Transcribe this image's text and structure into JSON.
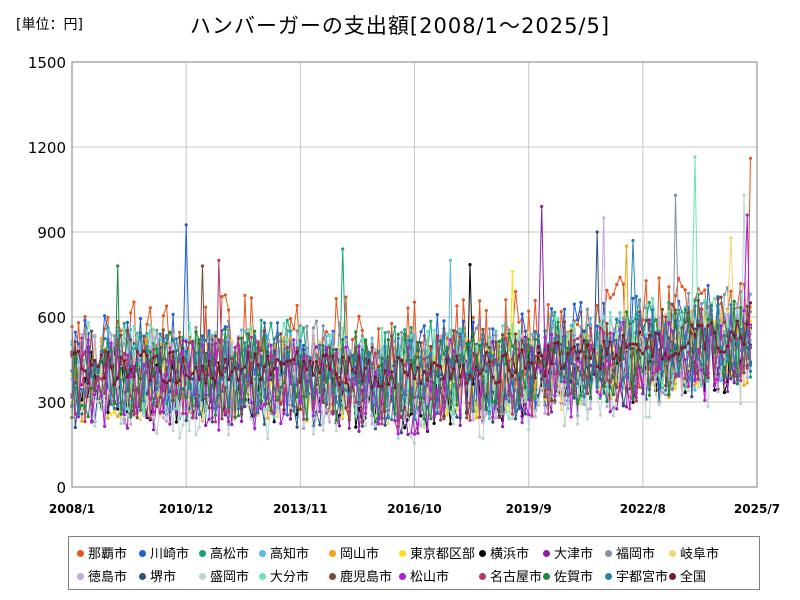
{
  "header": {
    "unit": "[単位：円]",
    "title": "ハンバーガーの支出額[2008/1～2025/5]"
  },
  "chart_data": {
    "type": "line",
    "title": "ハンバーガーの支出額[2008/1～2025/5]",
    "unit_label": "[単位：円]",
    "xlabel": "",
    "ylabel": "",
    "ylim": [
      0,
      1500
    ],
    "yticks": [
      0,
      300,
      600,
      900,
      1200,
      1500
    ],
    "xlim": [
      "2008/1",
      "2025/7"
    ],
    "xticks": [
      "2008/1",
      "2010/12",
      "2013/11",
      "2016/10",
      "2019/9",
      "2022/8",
      "2025/7"
    ],
    "grid": true,
    "legend_position": "bottom",
    "series": [
      {
        "name": "那覇市",
        "color": "#e8541e",
        "base": 480,
        "amp": 200,
        "peak_date": "2025/5",
        "peak_value": 1160
      },
      {
        "name": "川崎市",
        "color": "#1f5fd9",
        "base": 430,
        "amp": 180,
        "peak_date": "2010/12",
        "peak_value": 925
      },
      {
        "name": "高松市",
        "color": "#16a37a",
        "base": 420,
        "amp": 170,
        "peak_date": "2014/12",
        "peak_value": 840
      },
      {
        "name": "高知市",
        "color": "#5bb8e8",
        "base": 400,
        "amp": 160,
        "peak_date": "2017/9",
        "peak_value": 800
      },
      {
        "name": "岡山市",
        "color": "#f2a318",
        "base": 380,
        "amp": 150,
        "peak_date": "2022/3",
        "peak_value": 850
      },
      {
        "name": "東京都区部",
        "color": "#f5e11a",
        "base": 370,
        "amp": 120,
        "peak_date": "2019/4",
        "peak_value": 760
      },
      {
        "name": "横浜市",
        "color": "#000000",
        "base": 350,
        "amp": 130,
        "peak_date": "2018/3",
        "peak_value": 785
      },
      {
        "name": "大津市",
        "color": "#8b1ea6",
        "base": 360,
        "amp": 160,
        "peak_date": "2020/1",
        "peak_value": 990
      },
      {
        "name": "福岡市",
        "color": "#8591a0",
        "base": 420,
        "amp": 170,
        "peak_date": "2023/6",
        "peak_value": 1030
      },
      {
        "name": "岐阜市",
        "color": "#f0d477",
        "base": 380,
        "amp": 150,
        "peak_date": "2024/11",
        "peak_value": 880
      },
      {
        "name": "徳島市",
        "color": "#c6a6dc",
        "base": 380,
        "amp": 160,
        "peak_date": "2021/8",
        "peak_value": 950
      },
      {
        "name": "堺市",
        "color": "#2e4f82",
        "base": 360,
        "amp": 150,
        "peak_date": "2021/6",
        "peak_value": 900
      },
      {
        "name": "盛岡市",
        "color": "#bdd3cf",
        "base": 320,
        "amp": 150,
        "peak_date": "2025/3",
        "peak_value": 1030
      },
      {
        "name": "大分市",
        "color": "#6fe3b1",
        "base": 410,
        "amp": 180,
        "peak_date": "2023/12",
        "peak_value": 1165
      },
      {
        "name": "鹿児島市",
        "color": "#7a4a3a",
        "base": 400,
        "amp": 160,
        "peak_date": "2011/5",
        "peak_value": 780
      },
      {
        "name": "松山市",
        "color": "#b21ed6",
        "base": 360,
        "amp": 160,
        "peak_date": "2025/4",
        "peak_value": 960
      },
      {
        "name": "名古屋市",
        "color": "#b3396f",
        "base": 380,
        "amp": 150,
        "peak_date": "2011/10",
        "peak_value": 800
      },
      {
        "name": "佐賀市",
        "color": "#1b8a3a",
        "base": 400,
        "amp": 160,
        "peak_date": "2009/3",
        "peak_value": 780
      },
      {
        "name": "宇都宮市",
        "color": "#2a7fb0",
        "base": 400,
        "amp": 150,
        "peak_date": "2022/5",
        "peak_value": 870
      },
      {
        "name": "全国",
        "color": "#7a1a32",
        "base": 420,
        "amp": 60,
        "peak_date": "2025/5",
        "peak_value": 650
      }
    ]
  }
}
